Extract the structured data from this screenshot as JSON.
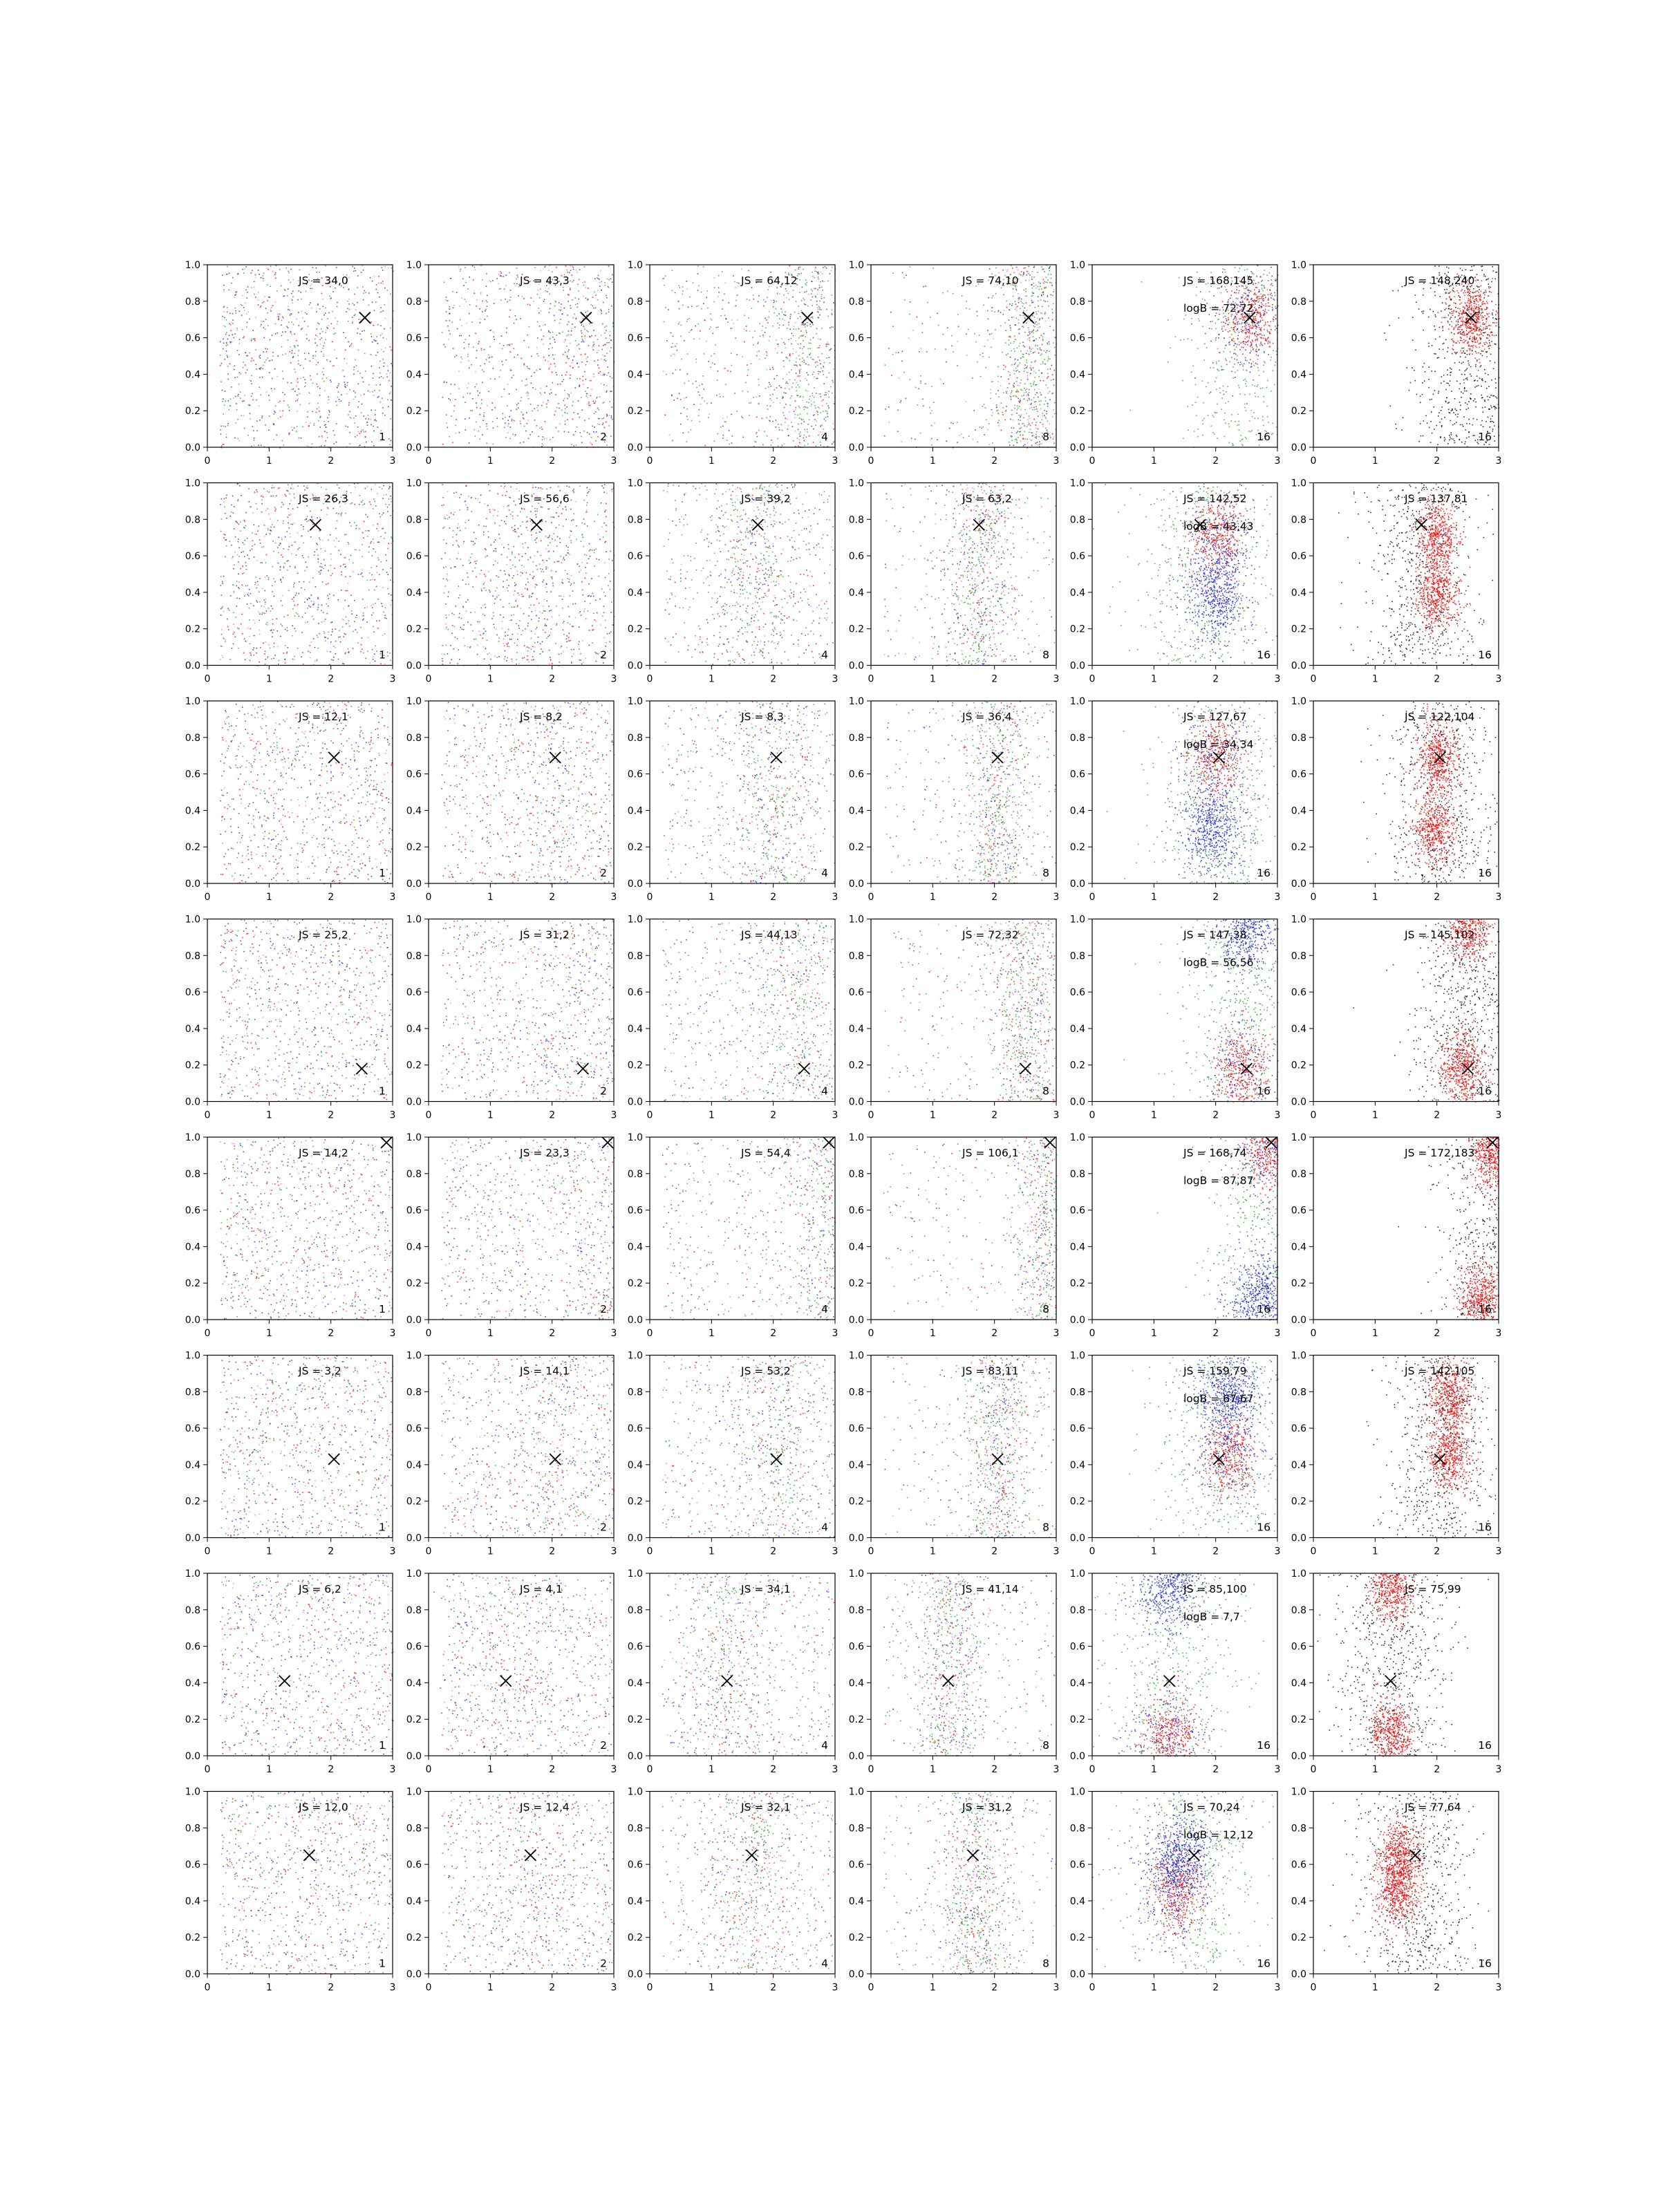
{
  "figure": {
    "rows": 8,
    "cols": 6,
    "xlim": [
      0,
      3
    ],
    "ylim": [
      0,
      1
    ],
    "xticks": [
      "0",
      "1",
      "2",
      "3"
    ],
    "yticks": [
      "0.0",
      "0.2",
      "0.4",
      "0.6",
      "0.8",
      "1.0"
    ],
    "colors": {
      "green": "#2ca02c",
      "blue": "#1f1fd6",
      "red": "#ff0000",
      "black": "#000000",
      "pink": "#ff66ff"
    },
    "column_tags": [
      "1",
      "2",
      "4",
      "8",
      "16",
      "16"
    ]
  },
  "chart_data": {
    "type": "scatter",
    "description_free": true,
    "rows": [
      {
        "marker": [
          2.55,
          0.71
        ],
        "labels": [
          "JS = 34,0",
          "JS = 43,3",
          "JS = 64,12",
          "JS = 74,10",
          "JS = 168,145",
          "JS = 148,240"
        ],
        "logB": "logB = 72,72",
        "clusters": [
          [
            2.55,
            0.71
          ]
        ]
      },
      {
        "marker": [
          1.75,
          0.77
        ],
        "labels": [
          "JS = 26,3",
          "JS = 56,6",
          "JS = 39,2",
          "JS = 63,2",
          "JS = 142,52",
          "JS = 137,81"
        ],
        "logB": "logB = 43,43",
        "clusters": [
          [
            2.0,
            0.7
          ],
          [
            2.0,
            0.38
          ]
        ]
      },
      {
        "marker": [
          2.05,
          0.69
        ],
        "labels": [
          "JS = 12,1",
          "JS = 8,2",
          "JS = 8,3",
          "JS = 36,4",
          "JS = 127,67",
          "JS = 122,104"
        ],
        "logB": "logB = 34,34",
        "clusters": [
          [
            2.0,
            0.7
          ],
          [
            1.95,
            0.3
          ]
        ]
      },
      {
        "marker": [
          2.5,
          0.18
        ],
        "labels": [
          "JS = 25,2",
          "JS = 31,2",
          "JS = 44,13",
          "JS = 72,32",
          "JS = 147,38",
          "JS = 145,102"
        ],
        "logB": "logB = 56,56",
        "clusters": [
          [
            2.4,
            0.18
          ],
          [
            2.5,
            0.95
          ]
        ]
      },
      {
        "marker": [
          2.9,
          0.97
        ],
        "labels": [
          "JS = 14,2",
          "JS = 23,3",
          "JS = 54,4",
          "JS = 106,1",
          "JS = 168,74",
          "JS = 172,183"
        ],
        "logB": "logB = 87,87",
        "clusters": [
          [
            2.85,
            0.92
          ],
          [
            2.7,
            0.12
          ]
        ]
      },
      {
        "marker": [
          2.05,
          0.43
        ],
        "labels": [
          "JS = 3,2",
          "JS = 14,1",
          "JS = 53,2",
          "JS = 83,11",
          "JS = 159,79",
          "JS = 142,105"
        ],
        "logB": "logB = 67,67",
        "clusters": [
          [
            2.2,
            0.45
          ],
          [
            2.2,
            0.78
          ]
        ]
      },
      {
        "marker": [
          1.25,
          0.41
        ],
        "labels": [
          "JS = 6,2",
          "JS = 4,1",
          "JS = 34,1",
          "JS = 41,14",
          "JS = 85,100",
          "JS = 75,99"
        ],
        "logB": "logB = 7,7",
        "clusters": [
          [
            1.25,
            0.12
          ],
          [
            1.25,
            0.93
          ]
        ]
      },
      {
        "marker": [
          1.65,
          0.65
        ],
        "labels": [
          "JS = 12,0",
          "JS = 12,4",
          "JS = 32,1",
          "JS = 31,2",
          "JS = 70,24",
          "JS = 77,64"
        ],
        "logB": "logB = 12,12",
        "clusters": [
          [
            1.35,
            0.45
          ],
          [
            1.4,
            0.65
          ]
        ]
      }
    ]
  }
}
